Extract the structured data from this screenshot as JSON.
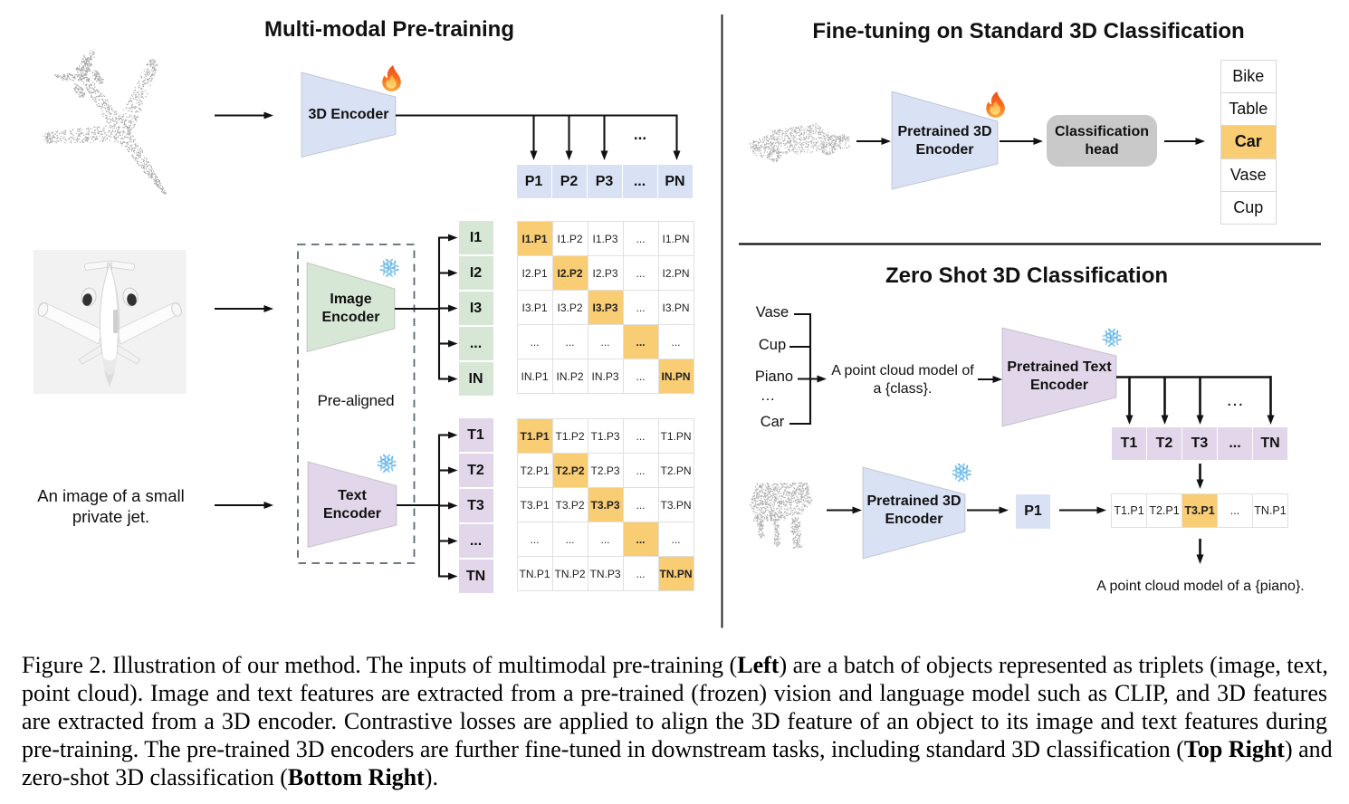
{
  "theme": {
    "accent_blue": "#d9e2f5",
    "accent_green": "#d7e7d5",
    "accent_purple": "#e2d7ea",
    "highlight_orange": "#f9cd74",
    "head_gray": "#c9c9c9",
    "grid_line": "#e0e0e0",
    "ink": "#111111"
  },
  "left_panel": {
    "title": "Multi-modal Pre-training",
    "encoder_3d": {
      "label": "3D Encoder",
      "status_icon": "fire-icon"
    },
    "image_encoder": {
      "lines": [
        "Image",
        "Encoder"
      ],
      "status_icon": "snowflake-icon"
    },
    "text_encoder": {
      "lines": [
        "Text",
        "Encoder"
      ],
      "status_icon": "snowflake-icon"
    },
    "prealigned_label": "Pre-aligned",
    "image_caption_lines": [
      "An image of a small",
      "private jet."
    ],
    "p_dots": "...",
    "p_row": [
      "P1",
      "P2",
      "P3",
      "...",
      "PN"
    ],
    "i_labels": [
      "I1",
      "I2",
      "I3",
      "...",
      "IN"
    ],
    "t_labels": [
      "T1",
      "T2",
      "T3",
      "...",
      "TN"
    ],
    "i_matrix": [
      [
        "I1.P1",
        "I1.P2",
        "I1.P3",
        "...",
        "I1.PN"
      ],
      [
        "I2.P1",
        "I2.P2",
        "I2.P3",
        "...",
        "I2.PN"
      ],
      [
        "I3.P1",
        "I3.P2",
        "I3.P3",
        "...",
        "I3.PN"
      ],
      [
        "...",
        "...",
        "...",
        "...",
        "..."
      ],
      [
        "IN.P1",
        "IN.P2",
        "IN.P3",
        "...",
        "IN.PN"
      ]
    ],
    "t_matrix": [
      [
        "T1.P1",
        "T1.P2",
        "T1.P3",
        "...",
        "T1.PN"
      ],
      [
        "T2.P1",
        "T2.P2",
        "T2.P3",
        "...",
        "T2.PN"
      ],
      [
        "T3.P1",
        "T3.P2",
        "T3.P3",
        "...",
        "T3.PN"
      ],
      [
        "...",
        "...",
        "...",
        "...",
        "..."
      ],
      [
        "TN.P1",
        "TN.P2",
        "TN.P3",
        "...",
        "TN.PN"
      ]
    ],
    "point_cloud": "airplane-point-cloud",
    "photo": "private-jet-photo"
  },
  "finetune_panel": {
    "title": "Fine-tuning on Standard 3D Classification",
    "encoder": {
      "lines": [
        "Pretrained 3D",
        "Encoder"
      ],
      "status_icon": "fire-icon"
    },
    "head": {
      "lines": [
        "Classification",
        "head"
      ]
    },
    "classes": [
      "Bike",
      "Table",
      "Car",
      "Vase",
      "Cup"
    ],
    "predicted_class": "Car",
    "point_cloud": "car-point-cloud"
  },
  "zeroshot_panel": {
    "title": "Zero Shot 3D Classification",
    "class_words": [
      "Vase",
      "Cup",
      "Piano",
      "…",
      "Car"
    ],
    "prompt_lines": [
      "A point cloud model of",
      "a {class}."
    ],
    "text_encoder": {
      "lines": [
        "Pretrained Text",
        "Encoder"
      ],
      "status_icon": "snowflake-icon"
    },
    "encoder_3d": {
      "lines": [
        "Pretrained 3D",
        "Encoder"
      ],
      "status_icon": "snowflake-icon"
    },
    "t_dots": "…",
    "t_row": [
      "T1",
      "T2",
      "T3",
      "...",
      "TN"
    ],
    "p1_label": "P1",
    "score_row": [
      "T1.P1",
      "T2.P1",
      "T3.P1",
      "...",
      "TN.P1"
    ],
    "result_text": "A point cloud model of a {piano}.",
    "point_cloud": "piano-point-cloud"
  },
  "caption": {
    "l1a": "Figure 2. Illustration of our method. The inputs of multimodal pre-training (",
    "l1b": "Left",
    "l1c": ") are a batch of objects represented as triplets (image, text,",
    "l2": "point cloud). Image and text features are extracted from a pre-trained (frozen) vision and language model such as CLIP, and 3D features",
    "l3": "are extracted from a 3D encoder. Contrastive losses are applied to align the 3D feature of an object to its image and text features during",
    "l4a": "pre-training. The pre-trained 3D encoders are further fine-tuned in downstream tasks, including standard 3D classification (",
    "l4b": "Top Right",
    "l4c": ") and",
    "l5a": "zero-shot 3D classification (",
    "l5b": "Bottom Right",
    "l5c": ")."
  }
}
